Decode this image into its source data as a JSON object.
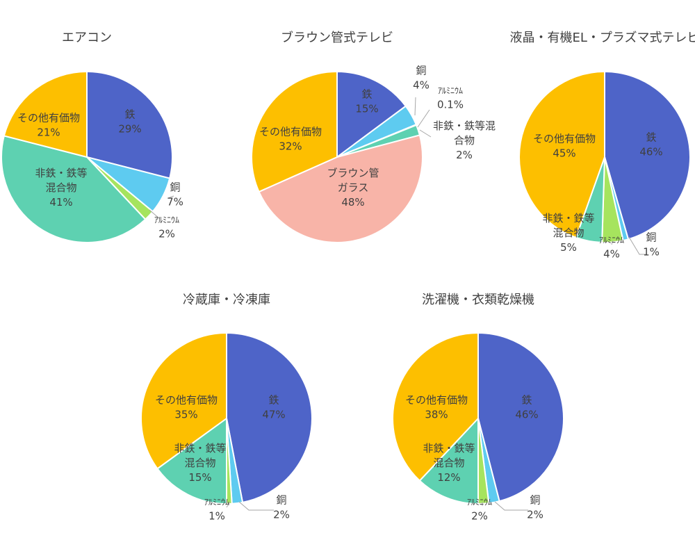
{
  "colors": {
    "鉄": "#4e64c8",
    "銅": "#5ecbf0",
    "アルミニウム": "#a6e45e",
    "非鉄・鉄等混合物": "#5ed1b1",
    "その他有価物": "#fdbf00",
    "ブラウン管ガラス": "#f8b4a8"
  },
  "chart_data": [
    {
      "type": "pie",
      "title": "エアコン",
      "slices": [
        {
          "name": "鉄",
          "value": 29,
          "label": [
            "鉄",
            "29%"
          ]
        },
        {
          "name": "銅",
          "value": 7,
          "label": [
            "銅",
            "7%"
          ]
        },
        {
          "name": "アルミニウム",
          "value": 2,
          "label": [
            "ｱﾙﾐﾆｳﾑ",
            "2%"
          ]
        },
        {
          "name": "非鉄・鉄等混合物",
          "value": 41,
          "label": [
            "非鉄・鉄等",
            "混合物",
            "41%"
          ]
        },
        {
          "name": "その他有価物",
          "value": 21,
          "label": [
            "その他有価物",
            "21%"
          ]
        }
      ]
    },
    {
      "type": "pie",
      "title": "ブラウン管式テレビ",
      "slices": [
        {
          "name": "鉄",
          "value": 15,
          "label": [
            "鉄",
            "15%"
          ]
        },
        {
          "name": "銅",
          "value": 4,
          "label": [
            "銅",
            "4%"
          ]
        },
        {
          "name": "アルミニウム",
          "value": 0.1,
          "label": [
            "ｱﾙﾐﾆｳﾑ",
            "0.1%"
          ]
        },
        {
          "name": "非鉄・鉄等混合物",
          "value": 2,
          "label": [
            "非鉄・鉄等混",
            "合物",
            "2%"
          ]
        },
        {
          "name": "ブラウン管ガラス",
          "value": 48,
          "label": [
            "ブラウン管",
            "ガラス",
            "48%"
          ]
        },
        {
          "name": "その他有価物",
          "value": 32,
          "label": [
            "その他有価物",
            "32%"
          ]
        }
      ]
    },
    {
      "type": "pie",
      "title": "液晶・有機EL・プラズマ式テレビ",
      "slices": [
        {
          "name": "鉄",
          "value": 46,
          "label": [
            "鉄",
            "46%"
          ]
        },
        {
          "name": "銅",
          "value": 1,
          "label": [
            "銅",
            "1%"
          ]
        },
        {
          "name": "アルミニウム",
          "value": 4,
          "label": [
            "ｱﾙﾐﾆｳﾑ",
            "4%"
          ]
        },
        {
          "name": "非鉄・鉄等混合物",
          "value": 5,
          "label": [
            "非鉄・鉄等",
            "混合物",
            "5%"
          ]
        },
        {
          "name": "その他有価物",
          "value": 45,
          "label": [
            "その他有価物",
            "45%"
          ]
        }
      ]
    },
    {
      "type": "pie",
      "title": "冷蔵庫・冷凍庫",
      "slices": [
        {
          "name": "鉄",
          "value": 47,
          "label": [
            "鉄",
            "47%"
          ]
        },
        {
          "name": "銅",
          "value": 2,
          "label": [
            "銅",
            "2%"
          ]
        },
        {
          "name": "アルミニウム",
          "value": 1,
          "label": [
            "ｱﾙﾐﾆｳﾑ",
            "1%"
          ]
        },
        {
          "name": "非鉄・鉄等混合物",
          "value": 15,
          "label": [
            "非鉄・鉄等",
            "混合物",
            "15%"
          ]
        },
        {
          "name": "その他有価物",
          "value": 35,
          "label": [
            "その他有価物",
            "35%"
          ]
        }
      ]
    },
    {
      "type": "pie",
      "title": "洗濯機・衣類乾燥機",
      "slices": [
        {
          "name": "鉄",
          "value": 46,
          "label": [
            "鉄",
            "46%"
          ]
        },
        {
          "name": "銅",
          "value": 2,
          "label": [
            "銅",
            "2%"
          ]
        },
        {
          "name": "アルミニウム",
          "value": 2,
          "label": [
            "ｱﾙﾐﾆｳﾑ",
            "2%"
          ]
        },
        {
          "name": "非鉄・鉄等混合物",
          "value": 12,
          "label": [
            "非鉄・鉄等",
            "混合物",
            "12%"
          ]
        },
        {
          "name": "その他有価物",
          "value": 38,
          "label": [
            "その他有価物",
            "38%"
          ]
        }
      ]
    }
  ]
}
